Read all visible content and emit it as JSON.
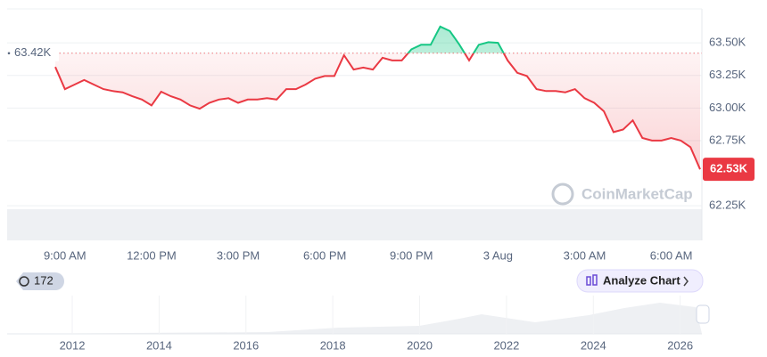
{
  "chart_data": {
    "type": "line",
    "categories": [
      null,
      "9:00 AM",
      null,
      null,
      null,
      null,
      null,
      null,
      null,
      null,
      "12:00 PM",
      null,
      null,
      null,
      null,
      null,
      null,
      null,
      null,
      "3:00 PM",
      null,
      null,
      null,
      null,
      null,
      null,
      null,
      null,
      "6:00 PM",
      null,
      null,
      null,
      null,
      null,
      null,
      null,
      null,
      "9:00 PM",
      null,
      null,
      null,
      null,
      null,
      null,
      null,
      null,
      "3 Aug",
      null,
      null,
      null,
      null,
      null,
      null,
      null,
      null,
      "3:00 AM",
      null,
      null,
      null,
      null,
      null,
      null,
      null,
      null,
      "6:00 AM",
      null,
      null,
      null
    ],
    "series": [
      {
        "name": null,
        "values": [
          63315,
          63145,
          63180,
          63215,
          63180,
          63145,
          63130,
          63120,
          63090,
          63065,
          63020,
          63125,
          63090,
          63065,
          63020,
          62995,
          63040,
          63065,
          63075,
          63040,
          63065,
          63065,
          63075,
          63065,
          63145,
          63145,
          63180,
          63225,
          63245,
          63245,
          63405,
          63295,
          63310,
          63295,
          63385,
          63365,
          63365,
          63450,
          63485,
          63485,
          63625,
          63590,
          63485,
          63365,
          63485,
          63505,
          63500,
          63365,
          63270,
          63245,
          63145,
          63130,
          63130,
          63120,
          63145,
          63075,
          63040,
          62975,
          62815,
          62835,
          62905,
          62770,
          62750,
          62750,
          62770,
          62750,
          62700,
          62530
        ]
      }
    ],
    "colors": {
      "below": "#ea3943",
      "above": "#16c784"
    },
    "ylim": [
      61985,
      63760
    ],
    "yticks": [
      {
        "value": 63500,
        "label": "63.50K"
      },
      {
        "value": 63250,
        "label": "63.25K"
      },
      {
        "value": 63000,
        "label": "63.00K"
      },
      {
        "value": 62750,
        "label": "62.75K"
      },
      {
        "value": 62250,
        "label": "62.25K"
      }
    ],
    "grid": true,
    "baseline": {
      "value": 63420,
      "label": "63.42K"
    },
    "current_price": {
      "value": 62530,
      "label": "62.53K"
    },
    "watermark": "CoinMarketCap",
    "badge": "172",
    "button": "Analyze Chart",
    "navigator": {
      "xlim": [
        2010.5,
        2026.5
      ],
      "xticks": [
        2012,
        2014,
        2016,
        2018,
        2020,
        2022,
        2024,
        2026
      ]
    }
  }
}
